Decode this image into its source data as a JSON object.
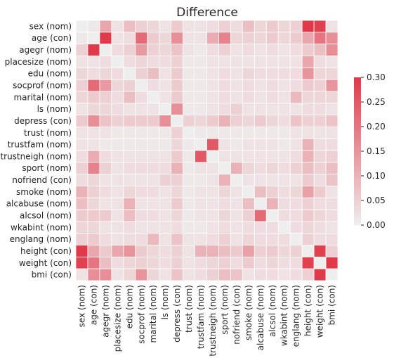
{
  "chart_data": {
    "type": "heatmap",
    "title": "Difference",
    "labels": [
      "sex (nom)",
      "age (con)",
      "agegr (nom)",
      "placesize (nom)",
      "edu (nom)",
      "socprof (nom)",
      "marital (nom)",
      "ls (nom)",
      "depress (con)",
      "trust (nom)",
      "trustfam (nom)",
      "trustneigh (nom)",
      "sport (nom)",
      "nofriend (con)",
      "smoke (nom)",
      "alcabuse (nom)",
      "alcsol (nom)",
      "wkabint (nom)",
      "englang (nom)",
      "height (con)",
      "weight (con)",
      "bmi (con)"
    ],
    "matrix": [
      [
        0.0,
        0.01,
        0.12,
        0.02,
        0.08,
        0.05,
        0.04,
        0.02,
        0.06,
        0.02,
        0.02,
        0.03,
        0.05,
        0.03,
        0.08,
        0.04,
        0.06,
        0.04,
        0.05,
        0.3,
        0.29,
        0.02
      ],
      [
        0.01,
        0.0,
        0.3,
        0.02,
        0.03,
        0.22,
        0.06,
        0.04,
        0.16,
        0.02,
        0.02,
        0.11,
        0.18,
        0.04,
        0.05,
        0.04,
        0.06,
        0.04,
        0.06,
        0.12,
        0.2,
        0.16
      ],
      [
        0.05,
        0.3,
        0.0,
        0.03,
        0.05,
        0.14,
        0.05,
        0.04,
        0.07,
        0.02,
        0.01,
        0.03,
        0.05,
        0.02,
        0.03,
        0.02,
        0.03,
        0.02,
        0.03,
        0.06,
        0.08,
        0.16
      ],
      [
        0.02,
        0.02,
        0.03,
        0.0,
        0.03,
        0.04,
        0.03,
        0.03,
        0.05,
        0.01,
        0.01,
        0.02,
        0.02,
        0.02,
        0.02,
        0.02,
        0.02,
        0.02,
        0.02,
        0.12,
        0.03,
        0.02
      ],
      [
        0.04,
        0.03,
        0.04,
        0.03,
        0.0,
        0.05,
        0.08,
        0.02,
        0.06,
        0.01,
        0.01,
        0.02,
        0.03,
        0.02,
        0.04,
        0.03,
        0.03,
        0.03,
        0.03,
        0.15,
        0.04,
        0.04
      ],
      [
        0.05,
        0.22,
        0.14,
        0.04,
        0.05,
        0.0,
        0.03,
        0.02,
        0.06,
        0.01,
        0.01,
        0.02,
        0.03,
        0.02,
        0.03,
        0.02,
        0.03,
        0.02,
        0.03,
        0.06,
        0.05,
        0.15
      ],
      [
        0.04,
        0.06,
        0.05,
        0.03,
        0.08,
        0.03,
        0.0,
        0.02,
        0.06,
        0.01,
        0.01,
        0.02,
        0.03,
        0.02,
        0.03,
        0.02,
        0.03,
        0.02,
        0.09,
        0.04,
        0.04,
        0.04
      ],
      [
        0.02,
        0.04,
        0.04,
        0.03,
        0.02,
        0.02,
        0.02,
        0.0,
        0.16,
        0.01,
        0.01,
        0.02,
        0.03,
        0.05,
        0.02,
        0.02,
        0.02,
        0.02,
        0.02,
        0.03,
        0.03,
        0.02
      ],
      [
        0.06,
        0.16,
        0.07,
        0.05,
        0.06,
        0.06,
        0.06,
        0.16,
        0.0,
        0.05,
        0.04,
        0.06,
        0.1,
        0.05,
        0.04,
        0.06,
        0.04,
        0.03,
        0.07,
        0.05,
        0.05,
        0.07
      ],
      [
        0.02,
        0.02,
        0.02,
        0.01,
        0.01,
        0.01,
        0.01,
        0.01,
        0.05,
        0.0,
        0.01,
        0.01,
        0.01,
        0.01,
        0.01,
        0.01,
        0.01,
        0.01,
        0.02,
        0.02,
        0.02,
        0.02
      ],
      [
        0.02,
        0.02,
        0.01,
        0.01,
        0.01,
        0.01,
        0.01,
        0.01,
        0.04,
        0.01,
        0.0,
        0.25,
        0.02,
        0.01,
        0.02,
        0.02,
        0.02,
        0.01,
        0.02,
        0.1,
        0.03,
        0.03
      ],
      [
        0.03,
        0.11,
        0.03,
        0.02,
        0.02,
        0.02,
        0.02,
        0.02,
        0.06,
        0.01,
        0.25,
        0.0,
        0.02,
        0.02,
        0.02,
        0.02,
        0.02,
        0.02,
        0.03,
        0.1,
        0.04,
        0.05
      ],
      [
        0.05,
        0.18,
        0.05,
        0.02,
        0.03,
        0.03,
        0.03,
        0.03,
        0.1,
        0.01,
        0.02,
        0.02,
        0.0,
        0.1,
        0.04,
        0.03,
        0.04,
        0.03,
        0.05,
        0.08,
        0.05,
        0.08
      ],
      [
        0.03,
        0.04,
        0.02,
        0.02,
        0.02,
        0.02,
        0.02,
        0.05,
        0.05,
        0.01,
        0.01,
        0.02,
        0.1,
        0.0,
        0.02,
        0.02,
        0.02,
        0.02,
        0.02,
        0.06,
        0.03,
        0.07
      ],
      [
        0.1,
        0.05,
        0.03,
        0.02,
        0.04,
        0.03,
        0.03,
        0.02,
        0.04,
        0.01,
        0.02,
        0.02,
        0.04,
        0.02,
        0.0,
        0.08,
        0.05,
        0.03,
        0.04,
        0.13,
        0.06,
        0.02
      ],
      [
        0.08,
        0.04,
        0.02,
        0.02,
        0.1,
        0.02,
        0.02,
        0.02,
        0.06,
        0.01,
        0.02,
        0.02,
        0.03,
        0.02,
        0.08,
        0.0,
        0.1,
        0.03,
        0.03,
        0.05,
        0.03,
        0.03
      ],
      [
        0.06,
        0.06,
        0.06,
        0.02,
        0.08,
        0.03,
        0.03,
        0.02,
        0.04,
        0.01,
        0.02,
        0.02,
        0.04,
        0.02,
        0.05,
        0.22,
        0.0,
        0.03,
        0.03,
        0.06,
        0.04,
        0.03
      ],
      [
        0.04,
        0.04,
        0.02,
        0.02,
        0.03,
        0.02,
        0.02,
        0.02,
        0.03,
        0.01,
        0.01,
        0.02,
        0.03,
        0.02,
        0.03,
        0.03,
        0.03,
        0.0,
        0.03,
        0.04,
        0.03,
        0.02
      ],
      [
        0.05,
        0.06,
        0.03,
        0.02,
        0.03,
        0.03,
        0.09,
        0.02,
        0.07,
        0.02,
        0.02,
        0.03,
        0.05,
        0.02,
        0.04,
        0.03,
        0.03,
        0.03,
        0.0,
        0.05,
        0.03,
        0.03
      ],
      [
        0.3,
        0.12,
        0.06,
        0.12,
        0.15,
        0.06,
        0.04,
        0.03,
        0.05,
        0.02,
        0.1,
        0.1,
        0.08,
        0.06,
        0.13,
        0.05,
        0.06,
        0.04,
        0.05,
        0.0,
        0.29,
        0.05
      ],
      [
        0.29,
        0.2,
        0.08,
        0.03,
        0.04,
        0.05,
        0.04,
        0.03,
        0.05,
        0.02,
        0.03,
        0.04,
        0.05,
        0.03,
        0.06,
        0.03,
        0.04,
        0.03,
        0.03,
        0.29,
        0.0,
        0.3
      ],
      [
        0.02,
        0.16,
        0.16,
        0.02,
        0.04,
        0.15,
        0.04,
        0.02,
        0.07,
        0.02,
        0.03,
        0.05,
        0.08,
        0.07,
        0.02,
        0.03,
        0.03,
        0.02,
        0.03,
        0.05,
        0.3,
        0.0
      ]
    ],
    "colorbar": {
      "min": 0.0,
      "max": 0.3,
      "ticks": [
        "0.30",
        "0.25",
        "0.20",
        "0.15",
        "0.10",
        "0.05",
        "0.00"
      ],
      "color_low": "#efeeee",
      "color_high": "#e03a4a"
    }
  }
}
